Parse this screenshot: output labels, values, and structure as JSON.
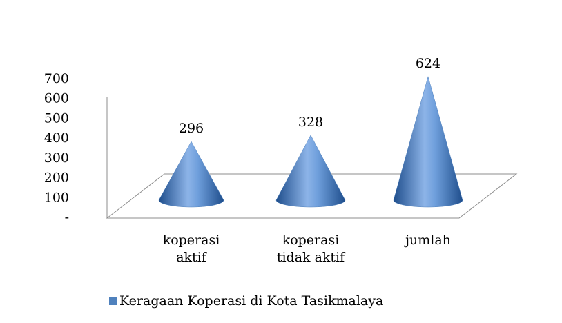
{
  "chart_data": {
    "type": "bar",
    "shape": "cone",
    "categories": [
      "koperasi aktif",
      "koperasi tidak aktif",
      "jumlah"
    ],
    "series": [
      {
        "name": "Keragaan Koperasi di Kota Tasikmalaya",
        "color": "#4f81bd",
        "values": [
          296,
          328,
          624
        ]
      }
    ],
    "ylim": [
      0,
      700
    ],
    "yticks": [
      {
        "value": 0,
        "label": "-"
      },
      100,
      200,
      300,
      400,
      500,
      600,
      700
    ],
    "legend": "bottom"
  }
}
